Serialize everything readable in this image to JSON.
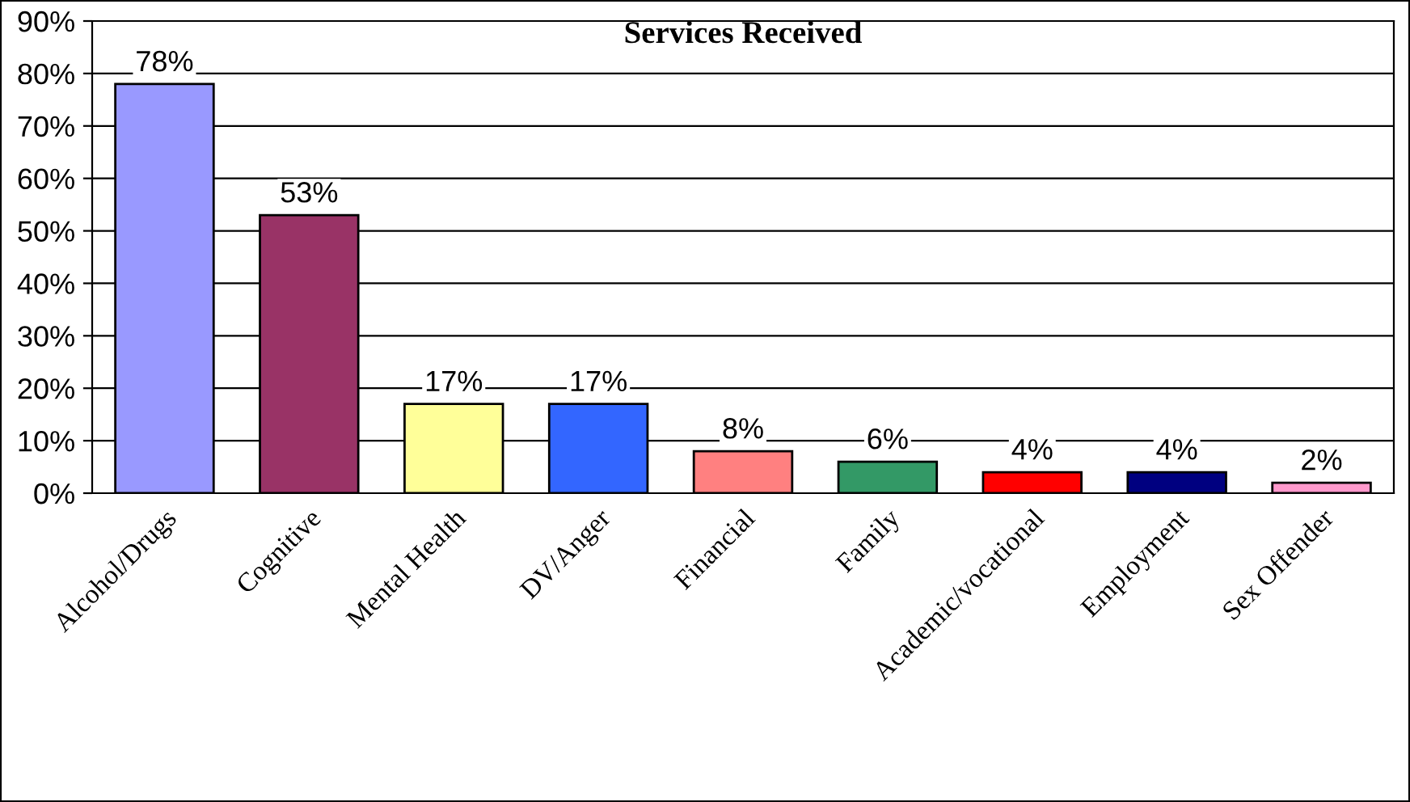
{
  "chart_data": {
    "type": "bar",
    "title": "Services Received",
    "categories": [
      "Alcohol/Drugs",
      "Cognitive",
      "Mental Health",
      "DV/Anger",
      "Financial",
      "Family",
      "Academic/vocational",
      "Employment",
      "Sex Offender"
    ],
    "values": [
      78,
      53,
      17,
      17,
      8,
      6,
      4,
      4,
      2
    ],
    "colors": [
      "#9999ff",
      "#993366",
      "#ffff99",
      "#3366ff",
      "#ff8080",
      "#339966",
      "#ff0000",
      "#000080",
      "#ff99cc"
    ],
    "value_labels": [
      "78%",
      "53%",
      "17%",
      "17%",
      "8%",
      "6%",
      "4%",
      "4%",
      "2%"
    ],
    "ylim": [
      0,
      90
    ],
    "yticks": [
      {
        "value": 0,
        "label": "0%"
      },
      {
        "value": 10,
        "label": "10%"
      },
      {
        "value": 20,
        "label": "20%"
      },
      {
        "value": 30,
        "label": "30%"
      },
      {
        "value": 40,
        "label": "40%"
      },
      {
        "value": 50,
        "label": "50%"
      },
      {
        "value": 60,
        "label": "60%"
      },
      {
        "value": 70,
        "label": "70%"
      },
      {
        "value": 80,
        "label": "80%"
      },
      {
        "value": 90,
        "label": "90%"
      }
    ],
    "grid": "y",
    "legend": false
  }
}
